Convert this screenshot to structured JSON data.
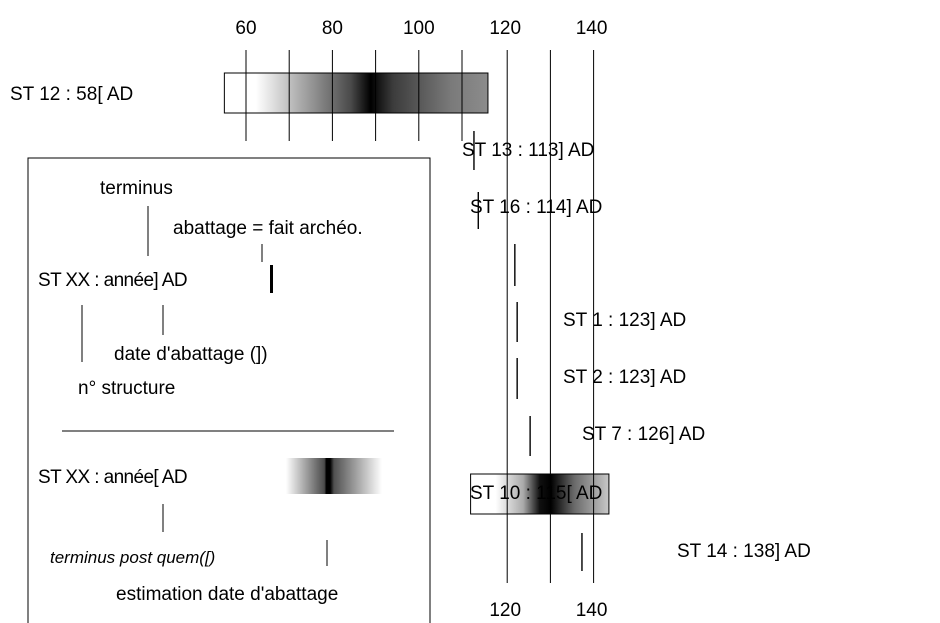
{
  "chart_data": {
    "type": "dendrochronology-timeline",
    "x_axis": {
      "top_ticks": [
        60,
        80,
        100,
        120,
        140
      ],
      "bottom_ticks": [
        120,
        140
      ],
      "unit": "AD"
    },
    "samples": [
      {
        "id": "st12",
        "label": "ST 12 : 58[ AD",
        "kind": "terminus_post_quem",
        "year": 58,
        "bar_start": 58,
        "bar_end": 113,
        "darkest_year": 90
      },
      {
        "id": "st13",
        "label": "ST 13 : 113] AD",
        "kind": "felling_date",
        "year": 113
      },
      {
        "id": "st16",
        "label": "ST 16 : 114] AD",
        "kind": "felling_date",
        "year": 114
      },
      {
        "id": "st1",
        "label": "ST 1 : 123] AD",
        "kind": "felling_date",
        "year": 123
      },
      {
        "id": "st2",
        "label": "ST 2 : 123] AD",
        "kind": "felling_date",
        "year": 123
      },
      {
        "id": "st7",
        "label": "ST 7 : 126] AD",
        "kind": "felling_date",
        "year": 126
      },
      {
        "id": "st10",
        "label": "ST 10 : 115[ AD",
        "kind": "terminus_post_quem",
        "year": 115,
        "bar_start": 115,
        "bar_end": 141,
        "darkest_year": 130
      },
      {
        "id": "st14",
        "label": "ST 14 : 138] AD",
        "kind": "felling_date",
        "year": 138
      }
    ],
    "extra_year_lines": [
      122
    ]
  },
  "legend": {
    "terminus": "terminus",
    "abattage": "abattage = fait archéo.",
    "example_felling": "ST XX : année] AD",
    "date_abattage": "date d'abattage (])",
    "structure": "n° structure",
    "example_tpq": "ST XX : année[ AD",
    "tpq": "terminus post quem([)",
    "estimation": "estimation date d'abattage"
  }
}
